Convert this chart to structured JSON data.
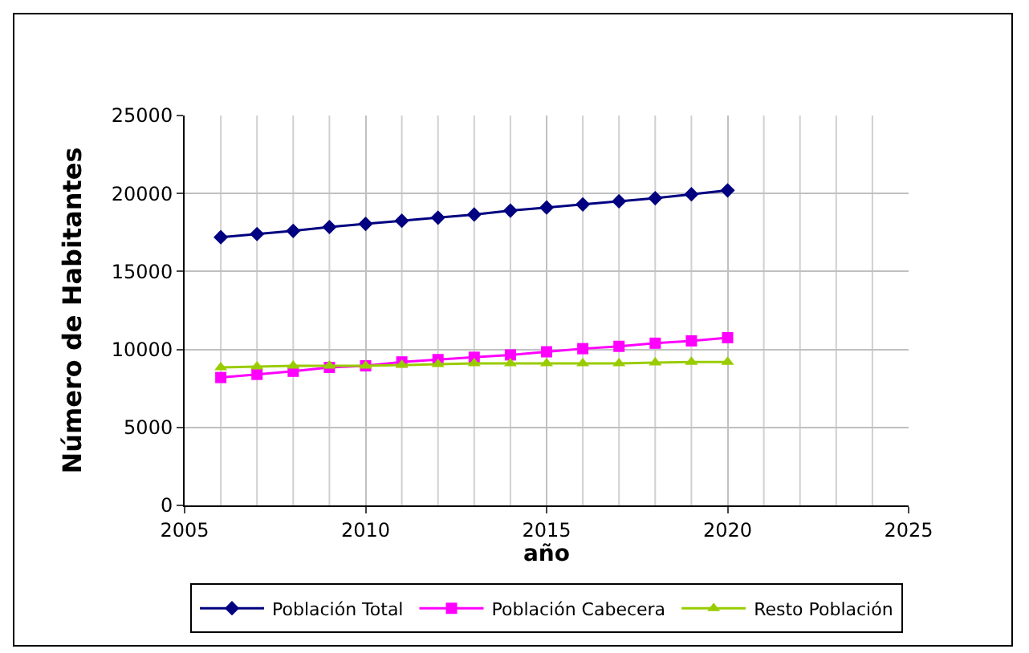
{
  "chart_data": {
    "type": "line",
    "xlabel": "año",
    "ylabel": "Número de Habitantes",
    "x": [
      2006,
      2007,
      2008,
      2009,
      2010,
      2011,
      2012,
      2013,
      2014,
      2015,
      2016,
      2017,
      2018,
      2019,
      2020
    ],
    "series": [
      {
        "name": "Población Total",
        "color": "#000080",
        "marker": "diamond",
        "values": [
          17200,
          17400,
          17600,
          17850,
          18050,
          18250,
          18450,
          18650,
          18900,
          19100,
          19300,
          19500,
          19700,
          19950,
          20200
        ]
      },
      {
        "name": "Población Cabecera",
        "color": "#ff00ff",
        "marker": "square",
        "values": [
          8200,
          8400,
          8600,
          8850,
          8950,
          9200,
          9350,
          9500,
          9650,
          9850,
          10050,
          10200,
          10400,
          10550,
          10750
        ]
      },
      {
        "name": "Resto Población",
        "color": "#99cc00",
        "marker": "triangle",
        "values": [
          8850,
          8900,
          8950,
          8950,
          8950,
          9000,
          9050,
          9100,
          9100,
          9100,
          9100,
          9100,
          9150,
          9200,
          9200
        ]
      }
    ],
    "xlim": [
      2005,
      2025
    ],
    "xticks": [
      2005,
      2010,
      2015,
      2020,
      2025
    ],
    "ylim": [
      0,
      25000
    ],
    "yticks": [
      0,
      5000,
      10000,
      15000,
      20000,
      25000
    ],
    "grid": true,
    "legend": "bottom",
    "line_style": "solid"
  }
}
